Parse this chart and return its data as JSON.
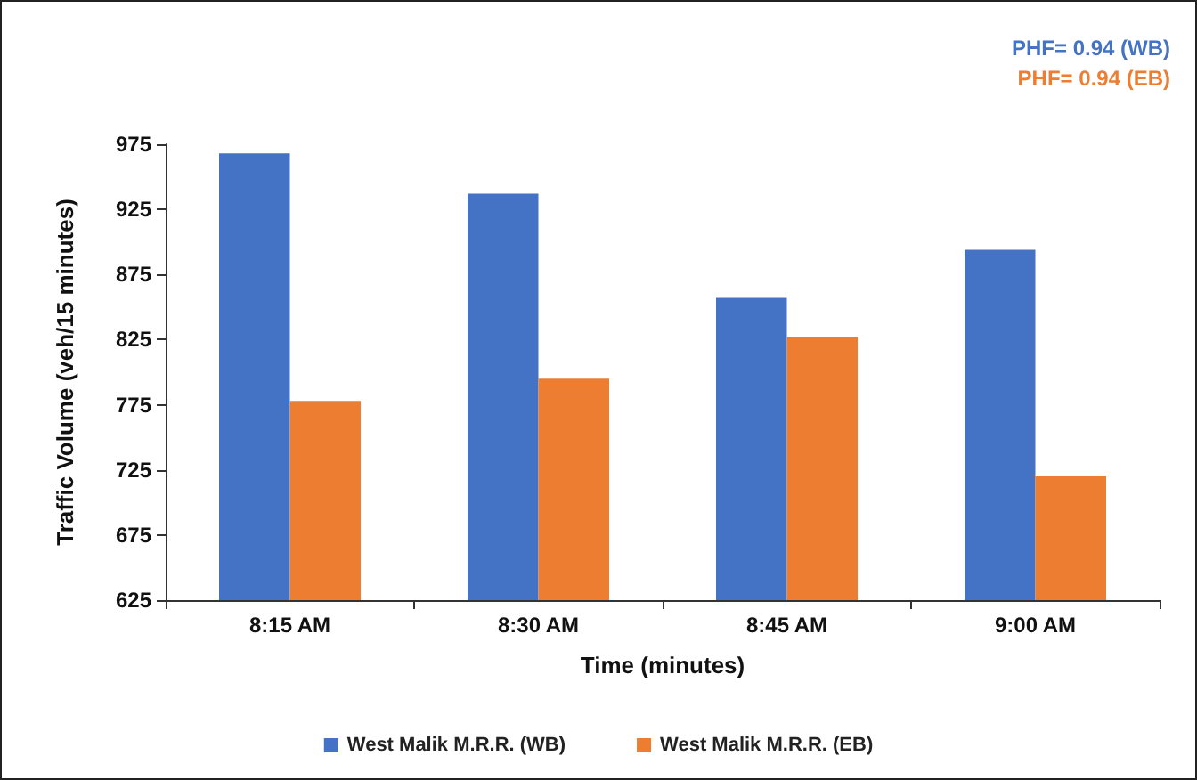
{
  "chart_data": {
    "type": "bar",
    "xlabel": "Time (minutes)",
    "ylabel": "Traffic Volume (veh/15 minutes)",
    "categories": [
      "8:15 AM",
      "8:30 AM",
      "8:45 AM",
      "9:00 AM"
    ],
    "series": [
      {
        "name": "West Malik M.R.R. (WB)",
        "color": "#4472c4",
        "values": [
          968,
          937,
          857,
          894
        ]
      },
      {
        "name": "West Malik M.R.R. (EB)",
        "color": "#ed7d31",
        "values": [
          778,
          795,
          827,
          720
        ]
      }
    ],
    "ylim": [
      625,
      975
    ],
    "yticks": [
      625,
      675,
      725,
      775,
      825,
      875,
      925,
      975
    ],
    "grid": false,
    "legend": "bottom",
    "annotations": [
      "PHF= 0.94 (WB)",
      "PHF= 0.94 (EB)"
    ]
  }
}
